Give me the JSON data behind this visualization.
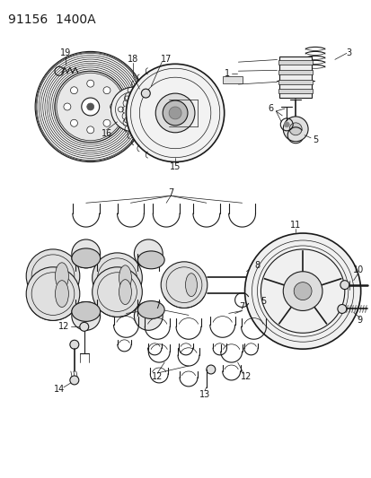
{
  "title": "91156  1400A",
  "bg_color": "#ffffff",
  "line_color": "#1a1a1a",
  "title_fontsize": 10,
  "label_fontsize": 7,
  "fig_width": 4.14,
  "fig_height": 5.33,
  "dpi": 100
}
